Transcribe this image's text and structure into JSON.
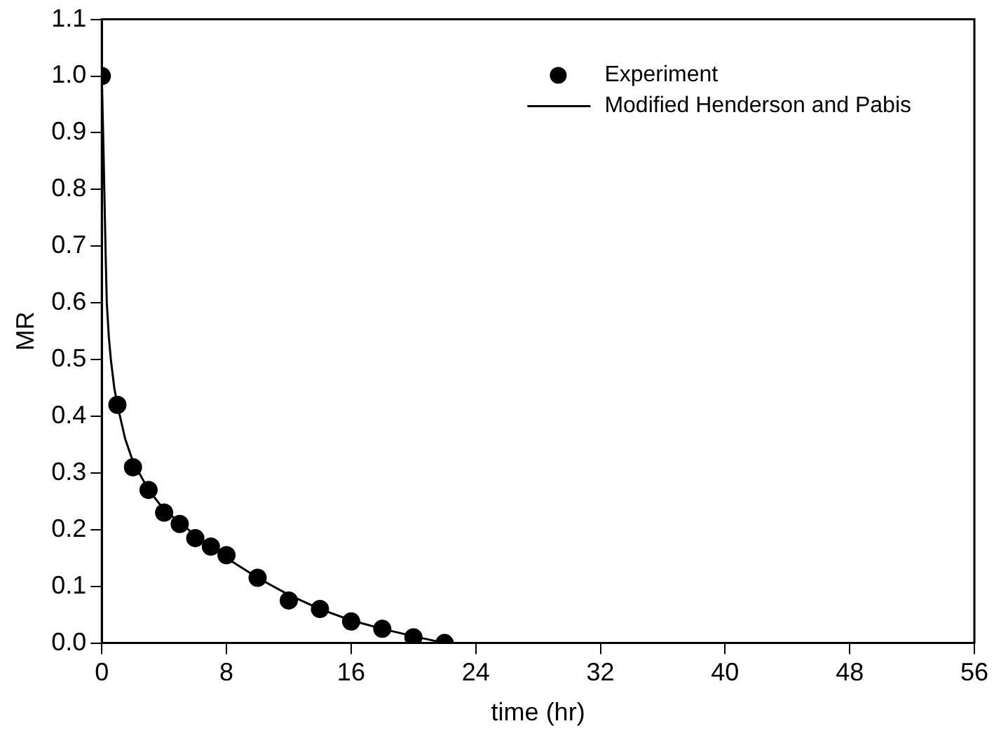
{
  "chart_data": {
    "type": "scatter",
    "xlabel": "time (hr)",
    "ylabel": "MR",
    "xlim": [
      0,
      56
    ],
    "xticks": [
      0,
      8,
      16,
      24,
      32,
      40,
      48,
      56
    ],
    "ylim": [
      0,
      1.1
    ],
    "yticks": [
      {
        "value": 0,
        "label": "0.0"
      },
      0.1,
      0.2,
      0.3,
      0.4,
      0.5,
      0.6,
      0.7,
      0.8,
      0.9,
      {
        "value": 1,
        "label": "1.0"
      },
      1.1
    ],
    "grid": false,
    "legend": "top right",
    "series": [
      {
        "name": "Experiment",
        "color": "#000000",
        "marker": "circle",
        "x": [
          0,
          1,
          2,
          3,
          4,
          5,
          6,
          7,
          8,
          10,
          12,
          14,
          16,
          18,
          20,
          22
        ],
        "values": [
          1.0,
          0.42,
          0.31,
          0.27,
          0.23,
          0.21,
          0.185,
          0.17,
          0.155,
          0.115,
          0.075,
          0.06,
          0.038,
          0.025,
          0.01,
          0.0
        ]
      },
      {
        "name": "Modified Henderson and Pabis",
        "type": "line",
        "color": "#000000",
        "marker": "none",
        "line_style": "solid",
        "x": [
          0,
          0.1,
          0.16,
          0.25,
          0.32,
          0.45,
          0.58,
          0.8,
          1,
          1.5,
          2,
          3,
          4,
          6,
          8,
          10,
          12,
          14,
          16,
          18,
          20,
          22
        ],
        "values": [
          1.0,
          0.88,
          0.8,
          0.68,
          0.6,
          0.54,
          0.5,
          0.45,
          0.42,
          0.36,
          0.32,
          0.27,
          0.235,
          0.19,
          0.15,
          0.115,
          0.085,
          0.06,
          0.04,
          0.025,
          0.012,
          0.0
        ]
      }
    ]
  }
}
